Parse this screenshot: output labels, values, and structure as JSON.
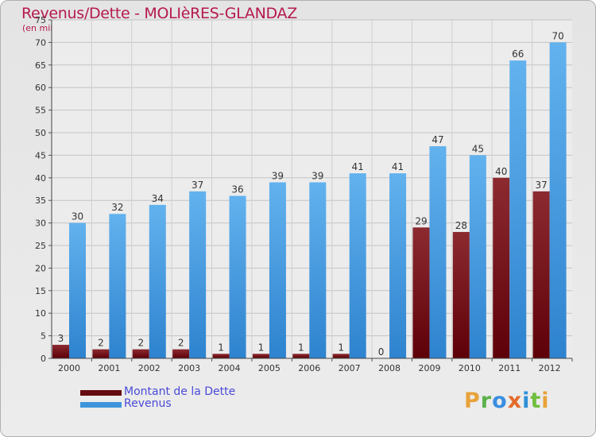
{
  "chart_data": {
    "type": "bar",
    "title": "Revenus/Dette - MOLIèRES-GLANDAZ",
    "subtitle": "(en milliers d'€)",
    "categories": [
      "2000",
      "2001",
      "2002",
      "2003",
      "2004",
      "2005",
      "2006",
      "2007",
      "2008",
      "2009",
      "2010",
      "2011",
      "2012"
    ],
    "series": [
      {
        "name": "Montant de la Dette",
        "color": "#7a1018",
        "values": [
          3,
          2,
          2,
          2,
          1,
          1,
          1,
          1,
          0,
          29,
          28,
          40,
          37
        ]
      },
      {
        "name": "Revenus",
        "color": "#4aa1e4",
        "values": [
          30,
          32,
          34,
          37,
          36,
          39,
          39,
          41,
          41,
          47,
          45,
          66,
          70
        ]
      }
    ],
    "ylim": [
      0,
      75
    ],
    "yticks": [
      0,
      5,
      10,
      15,
      20,
      25,
      30,
      35,
      40,
      45,
      50,
      55,
      60,
      65,
      70,
      75
    ],
    "grid": true,
    "legend_position": "bottom-left"
  },
  "logo": {
    "letters": [
      {
        "ch": "P",
        "color": "#e8a23a"
      },
      {
        "ch": "r",
        "color": "#5bb24a"
      },
      {
        "ch": "o",
        "color": "#3a8ee0"
      },
      {
        "ch": "x",
        "color": "#e46a2a"
      },
      {
        "ch": "i",
        "color": "#2f8fd8"
      },
      {
        "ch": "t",
        "color": "#6fbf3f"
      },
      {
        "ch": "i",
        "color": "#e8a23a"
      }
    ]
  }
}
